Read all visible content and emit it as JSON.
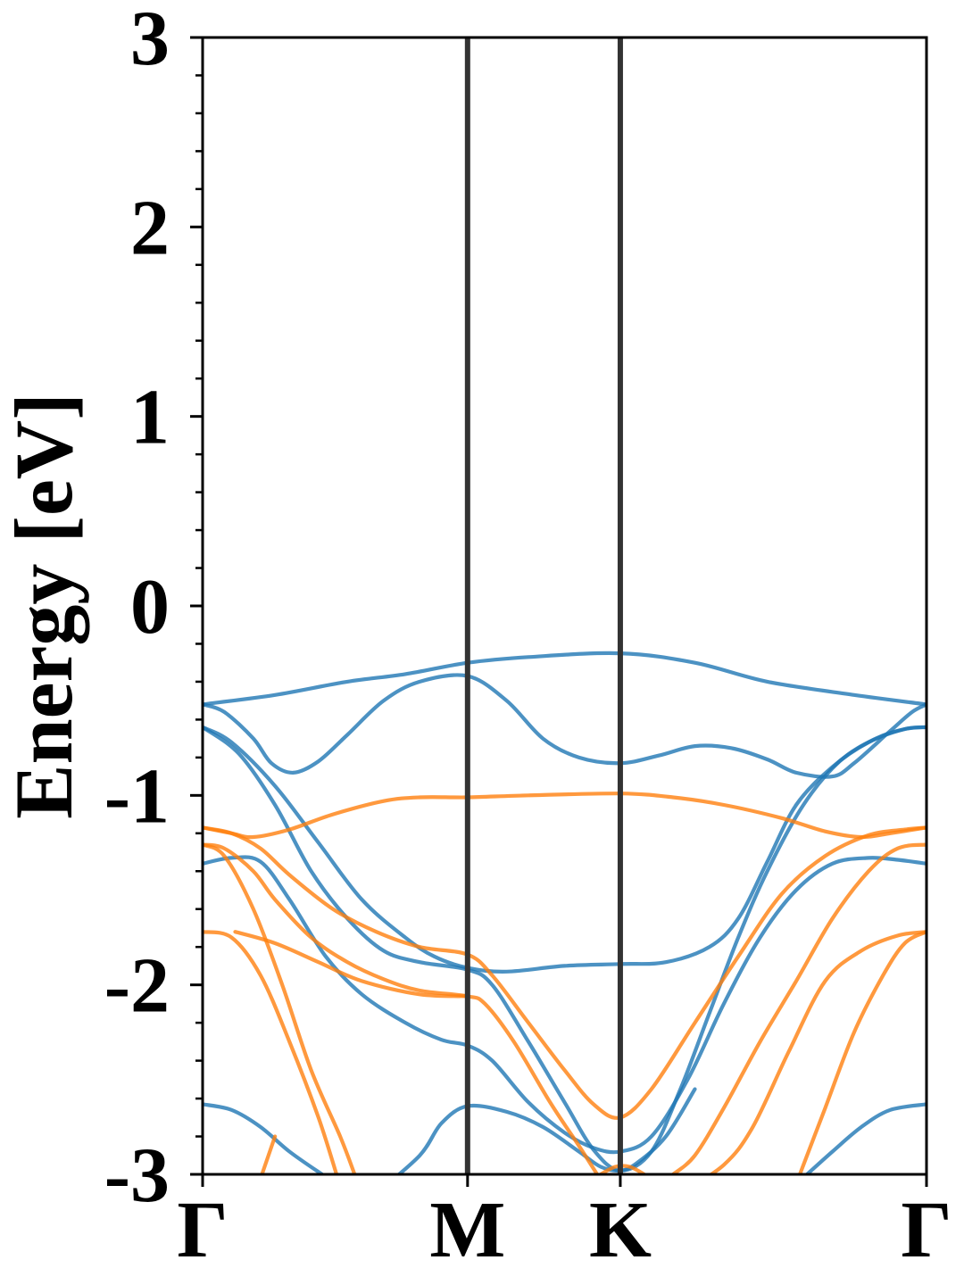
{
  "chart_data": {
    "type": "line",
    "title": "",
    "xlabel": "",
    "ylabel": "Energy [eV]",
    "ylim": [
      -3,
      3
    ],
    "xlim": [
      0,
      1
    ],
    "yticks": [
      {
        "value": 3,
        "label": "3"
      },
      {
        "value": 2,
        "label": "2"
      },
      {
        "value": 1,
        "label": "1"
      },
      {
        "value": 0,
        "label": "0"
      },
      {
        "value": -1,
        "label": "-1"
      },
      {
        "value": -2,
        "label": "-2"
      },
      {
        "value": -3,
        "label": "-3"
      }
    ],
    "high_symmetry_points": [
      {
        "label": "Γ",
        "x": 0.0
      },
      {
        "label": "M",
        "x": 0.366
      },
      {
        "label": "K",
        "x": 0.577
      },
      {
        "label": "Γ",
        "x": 1.0
      }
    ],
    "grid": false,
    "legend": "none",
    "colors": {
      "blue": "#1f77b4",
      "orange": "#ff7f0e",
      "vline": "#333333"
    },
    "series": [
      {
        "color": "#1f77b4",
        "points": [
          [
            0,
            -0.52
          ],
          [
            0.1,
            -0.47
          ],
          [
            0.2,
            -0.4
          ],
          [
            0.28,
            -0.36
          ],
          [
            0.366,
            -0.3
          ],
          [
            0.45,
            -0.27
          ],
          [
            0.577,
            -0.25
          ],
          [
            0.68,
            -0.3
          ],
          [
            0.78,
            -0.4
          ],
          [
            0.9,
            -0.47
          ],
          [
            1.0,
            -0.52
          ]
        ]
      },
      {
        "color": "#1f77b4",
        "points": [
          [
            0,
            -0.52
          ],
          [
            0.03,
            -0.56
          ],
          [
            0.07,
            -0.7
          ],
          [
            0.095,
            -0.83
          ],
          [
            0.125,
            -0.88
          ],
          [
            0.16,
            -0.82
          ],
          [
            0.2,
            -0.68
          ],
          [
            0.25,
            -0.5
          ],
          [
            0.3,
            -0.4
          ],
          [
            0.366,
            -0.37
          ],
          [
            0.42,
            -0.5
          ],
          [
            0.47,
            -0.7
          ],
          [
            0.52,
            -0.8
          ],
          [
            0.577,
            -0.83
          ],
          [
            0.63,
            -0.79
          ],
          [
            0.68,
            -0.74
          ],
          [
            0.73,
            -0.75
          ],
          [
            0.78,
            -0.81
          ],
          [
            0.82,
            -0.88
          ],
          [
            0.87,
            -0.9
          ],
          [
            0.9,
            -0.83
          ],
          [
            0.95,
            -0.66
          ],
          [
            0.98,
            -0.56
          ],
          [
            1.0,
            -0.52
          ]
        ]
      },
      {
        "color": "#1f77b4",
        "points": [
          [
            0,
            -0.64
          ],
          [
            0.04,
            -0.72
          ],
          [
            0.1,
            -0.95
          ],
          [
            0.16,
            -1.25
          ],
          [
            0.22,
            -1.55
          ],
          [
            0.28,
            -1.75
          ],
          [
            0.32,
            -1.85
          ],
          [
            0.366,
            -1.91
          ],
          [
            0.42,
            -1.93
          ],
          [
            0.5,
            -1.9
          ],
          [
            0.577,
            -1.89
          ],
          [
            0.64,
            -1.88
          ],
          [
            0.7,
            -1.8
          ],
          [
            0.74,
            -1.65
          ],
          [
            0.78,
            -1.35
          ],
          [
            0.82,
            -1.05
          ],
          [
            0.87,
            -0.85
          ],
          [
            0.92,
            -0.72
          ],
          [
            0.97,
            -0.65
          ],
          [
            1.0,
            -0.64
          ]
        ]
      },
      {
        "color": "#1f77b4",
        "points": [
          [
            0,
            -0.64
          ],
          [
            0.05,
            -0.78
          ],
          [
            0.1,
            -1.05
          ],
          [
            0.15,
            -1.4
          ],
          [
            0.2,
            -1.65
          ],
          [
            0.25,
            -1.82
          ],
          [
            0.3,
            -1.88
          ],
          [
            0.366,
            -1.92
          ],
          [
            0.4,
            -2.0
          ],
          [
            0.45,
            -2.3
          ],
          [
            0.5,
            -2.62
          ],
          [
            0.54,
            -2.87
          ],
          [
            0.577,
            -2.98
          ],
          [
            0.62,
            -2.88
          ],
          [
            0.66,
            -2.55
          ],
          [
            0.7,
            -2.15
          ],
          [
            0.74,
            -1.75
          ],
          [
            0.78,
            -1.4
          ],
          [
            0.83,
            -1.05
          ],
          [
            0.88,
            -0.82
          ],
          [
            0.93,
            -0.7
          ],
          [
            0.97,
            -0.65
          ],
          [
            1.0,
            -0.64
          ]
        ]
      },
      {
        "color": "#1f77b4",
        "points": [
          [
            0,
            -1.36
          ],
          [
            0.04,
            -1.33
          ],
          [
            0.08,
            -1.35
          ],
          [
            0.12,
            -1.55
          ],
          [
            0.17,
            -1.85
          ],
          [
            0.22,
            -2.05
          ],
          [
            0.28,
            -2.2
          ],
          [
            0.33,
            -2.29
          ],
          [
            0.366,
            -2.32
          ],
          [
            0.4,
            -2.4
          ],
          [
            0.45,
            -2.62
          ],
          [
            0.5,
            -2.78
          ],
          [
            0.54,
            -2.86
          ],
          [
            0.577,
            -2.88
          ],
          [
            0.62,
            -2.8
          ],
          [
            0.67,
            -2.5
          ],
          [
            0.72,
            -2.1
          ],
          [
            0.77,
            -1.75
          ],
          [
            0.82,
            -1.5
          ],
          [
            0.87,
            -1.36
          ],
          [
            0.92,
            -1.33
          ],
          [
            0.96,
            -1.34
          ],
          [
            1.0,
            -1.36
          ]
        ]
      },
      {
        "color": "#1f77b4",
        "points": [
          [
            0,
            -2.63
          ],
          [
            0.04,
            -2.66
          ],
          [
            0.08,
            -2.75
          ],
          [
            0.12,
            -2.88
          ],
          [
            0.165,
            -3.0
          ]
        ]
      },
      {
        "color": "#1f77b4",
        "points": [
          [
            0.24,
            -3.1
          ],
          [
            0.3,
            -2.9
          ],
          [
            0.33,
            -2.73
          ],
          [
            0.366,
            -2.64
          ],
          [
            0.42,
            -2.67
          ],
          [
            0.47,
            -2.75
          ],
          [
            0.52,
            -2.88
          ],
          [
            0.55,
            -2.96
          ],
          [
            0.577,
            -2.98
          ],
          [
            0.6,
            -2.94
          ],
          [
            0.64,
            -2.8
          ],
          [
            0.68,
            -2.55
          ]
        ]
      },
      {
        "color": "#1f77b4",
        "points": [
          [
            0.835,
            -3.0
          ],
          [
            0.87,
            -2.88
          ],
          [
            0.91,
            -2.75
          ],
          [
            0.95,
            -2.66
          ],
          [
            1.0,
            -2.63
          ]
        ]
      },
      {
        "color": "#ff7f0e",
        "points": [
          [
            0,
            -1.17
          ],
          [
            0.04,
            -1.2
          ],
          [
            0.07,
            -1.22
          ],
          [
            0.12,
            -1.18
          ],
          [
            0.18,
            -1.1
          ],
          [
            0.25,
            -1.03
          ],
          [
            0.3,
            -1.01
          ],
          [
            0.366,
            -1.01
          ],
          [
            0.45,
            -1.0
          ],
          [
            0.577,
            -0.99
          ],
          [
            0.65,
            -1.01
          ],
          [
            0.72,
            -1.05
          ],
          [
            0.8,
            -1.12
          ],
          [
            0.86,
            -1.19
          ],
          [
            0.91,
            -1.22
          ],
          [
            0.95,
            -1.2
          ],
          [
            1.0,
            -1.17
          ]
        ]
      },
      {
        "color": "#ff7f0e",
        "points": [
          [
            0,
            -1.17
          ],
          [
            0.04,
            -1.2
          ],
          [
            0.08,
            -1.28
          ],
          [
            0.12,
            -1.42
          ],
          [
            0.18,
            -1.6
          ],
          [
            0.24,
            -1.72
          ],
          [
            0.3,
            -1.8
          ],
          [
            0.366,
            -1.84
          ],
          [
            0.4,
            -1.95
          ],
          [
            0.45,
            -2.2
          ],
          [
            0.5,
            -2.45
          ],
          [
            0.54,
            -2.63
          ],
          [
            0.577,
            -2.7
          ],
          [
            0.62,
            -2.55
          ],
          [
            0.68,
            -2.2
          ],
          [
            0.74,
            -1.85
          ],
          [
            0.8,
            -1.52
          ],
          [
            0.86,
            -1.32
          ],
          [
            0.92,
            -1.21
          ],
          [
            0.97,
            -1.18
          ],
          [
            1.0,
            -1.17
          ]
        ]
      },
      {
        "color": "#ff7f0e",
        "points": [
          [
            0,
            -1.26
          ],
          [
            0.03,
            -1.28
          ],
          [
            0.07,
            -1.4
          ],
          [
            0.1,
            -1.55
          ],
          [
            0.15,
            -1.75
          ],
          [
            0.2,
            -1.88
          ],
          [
            0.25,
            -1.97
          ],
          [
            0.3,
            -2.03
          ],
          [
            0.366,
            -2.06
          ],
          [
            0.39,
            -2.1
          ],
          [
            0.43,
            -2.3
          ],
          [
            0.48,
            -2.62
          ],
          [
            0.52,
            -2.85
          ],
          [
            0.545,
            -3.0
          ]
        ]
      },
      {
        "color": "#ff7f0e",
        "points": [
          [
            0.55,
            -3.0
          ],
          [
            0.57,
            -2.96
          ],
          [
            0.59,
            -2.96
          ],
          [
            0.61,
            -3.0
          ]
        ]
      },
      {
        "color": "#ff7f0e",
        "points": [
          [
            0.65,
            -3.0
          ],
          [
            0.68,
            -2.9
          ],
          [
            0.72,
            -2.65
          ],
          [
            0.77,
            -2.3
          ],
          [
            0.82,
            -1.98
          ],
          [
            0.87,
            -1.65
          ],
          [
            0.92,
            -1.4
          ],
          [
            0.96,
            -1.28
          ],
          [
            1.0,
            -1.26
          ]
        ]
      },
      {
        "color": "#ff7f0e",
        "points": [
          [
            0,
            -1.72
          ],
          [
            0.04,
            -1.75
          ],
          [
            0.08,
            -1.95
          ],
          [
            0.12,
            -2.3
          ],
          [
            0.16,
            -2.7
          ],
          [
            0.185,
            -3.0
          ]
        ]
      },
      {
        "color": "#ff7f0e",
        "points": [
          [
            0,
            -1.26
          ],
          [
            0.03,
            -1.32
          ],
          [
            0.07,
            -1.6
          ],
          [
            0.11,
            -2.0
          ],
          [
            0.15,
            -2.45
          ],
          [
            0.19,
            -2.8
          ],
          [
            0.21,
            -3.0
          ]
        ]
      },
      {
        "color": "#ff7f0e",
        "points": [
          [
            0.082,
            -3.0
          ],
          [
            0.1,
            -2.8
          ]
        ]
      },
      {
        "color": "#ff7f0e",
        "points": [
          [
            0.045,
            -1.72
          ],
          [
            0.1,
            -1.78
          ],
          [
            0.16,
            -1.88
          ],
          [
            0.22,
            -1.98
          ],
          [
            0.3,
            -2.05
          ],
          [
            0.366,
            -2.06
          ]
        ]
      },
      {
        "color": "#ff7f0e",
        "points": [
          [
            0.825,
            -3.0
          ],
          [
            0.86,
            -2.65
          ],
          [
            0.9,
            -2.25
          ],
          [
            0.94,
            -1.95
          ],
          [
            0.97,
            -1.78
          ],
          [
            1.0,
            -1.72
          ]
        ]
      },
      {
        "color": "#ff7f0e",
        "points": [
          [
            0.66,
            -3.1
          ],
          [
            0.72,
            -2.95
          ],
          [
            0.76,
            -2.75
          ],
          [
            0.81,
            -2.35
          ],
          [
            0.86,
            -1.98
          ],
          [
            0.91,
            -1.82
          ],
          [
            0.96,
            -1.74
          ],
          [
            1.0,
            -1.72
          ]
        ]
      }
    ]
  }
}
